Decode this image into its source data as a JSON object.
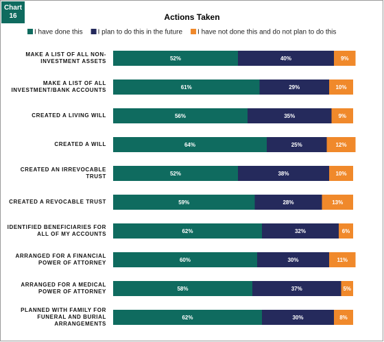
{
  "chart_data": {
    "type": "stacked-bar-horizontal",
    "badge": "Chart 16",
    "title": "Actions Taken",
    "categories": [
      "MAKE A LIST OF ALL NON-INVESTMENT ASSETS",
      "MAKE A LIST OF ALL INVESTMENT/BANK ACCOUNTS",
      "CREATED A LIVING WILL",
      "CREATED A WILL",
      "CREATED AN IRREVOCABLE TRUST",
      "CREATED A REVOCABLE TRUST",
      "IDENTIFIED BENEFICIARIES FOR ALL OF MY ACCOUNTS",
      "ARRANGED FOR A FINANCIAL POWER OF ATTORNEY",
      "ARRANGED FOR A MEDICAL POWER OF ATTORNEY",
      "PLANNED WITH FAMILY FOR FUNERAL AND BURIAL ARRANGEMENTS"
    ],
    "xlim": [
      0,
      100
    ],
    "series": [
      {
        "name": "I have done this",
        "color": "#0f6b5f",
        "values": [
          52,
          61,
          56,
          64,
          52,
          59,
          62,
          60,
          58,
          62
        ],
        "value_labels": [
          "52%",
          "61%",
          "56%",
          "64%",
          "52%",
          "59%",
          "62%",
          "60%",
          "58%",
          "62%"
        ]
      },
      {
        "name": "I plan to do this in the future",
        "color": "#252a5c",
        "values": [
          40,
          29,
          35,
          25,
          38,
          28,
          32,
          30,
          37,
          30
        ],
        "value_labels": [
          "40%",
          "29%",
          "35%",
          "25%",
          "38%",
          "28%",
          "32%",
          "30%",
          "37%",
          "30%"
        ]
      },
      {
        "name": "I have not done this and do not plan to do this",
        "color": "#f0892b",
        "values": [
          9,
          10,
          9,
          12,
          10,
          13,
          6,
          11,
          5,
          8
        ],
        "value_labels": [
          "9%",
          "10%",
          "9%",
          "12%",
          "10%",
          "13%",
          "6%",
          "11%",
          "5%",
          "8%"
        ]
      }
    ]
  }
}
